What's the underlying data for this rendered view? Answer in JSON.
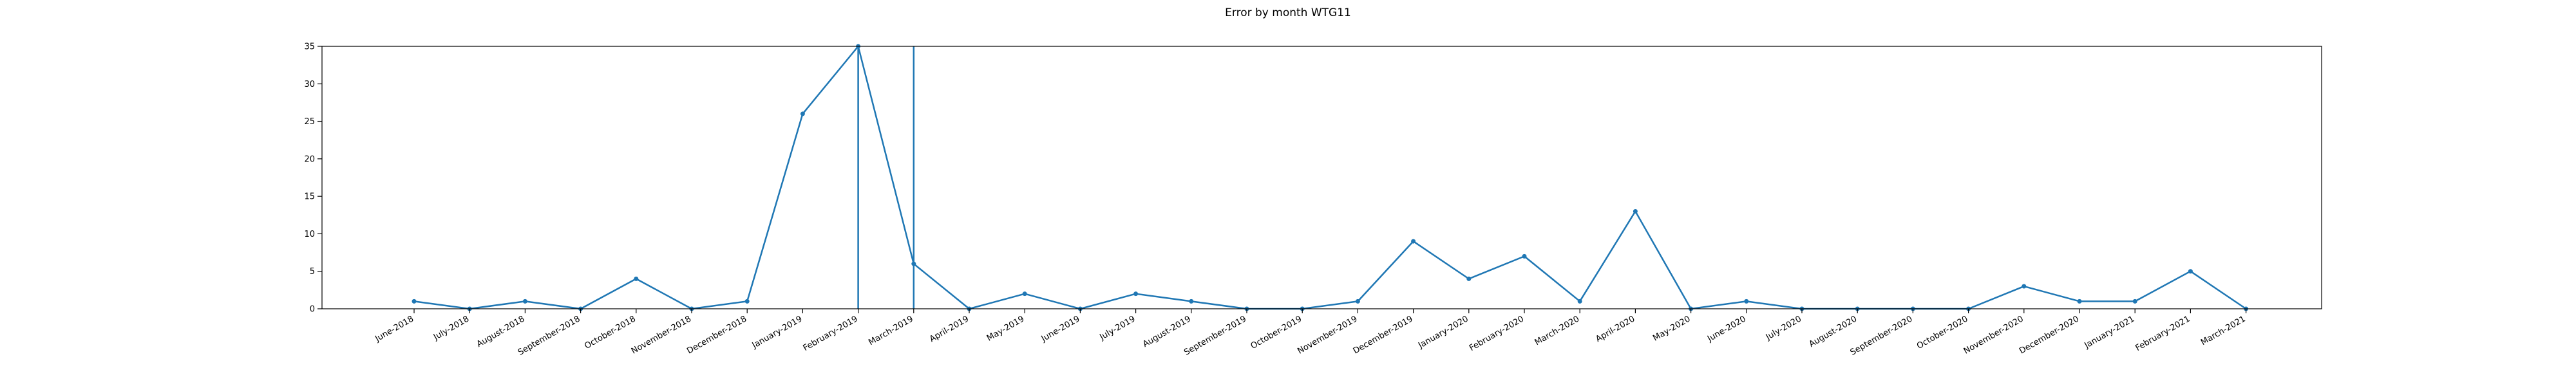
{
  "chart_data": {
    "type": "line",
    "title": "Error by month WTG11",
    "xlabel": "",
    "ylabel": "",
    "ylim": [
      0,
      35
    ],
    "yticks": [
      0,
      5,
      10,
      15,
      20,
      25,
      30,
      35
    ],
    "grid": false,
    "color": "#1f77b4",
    "categories": [
      "June-2018",
      "July-2018",
      "August-2018",
      "September-2018",
      "October-2018",
      "November-2018",
      "December-2018",
      "January-2019",
      "February-2019",
      "March-2019",
      "April-2019",
      "May-2019",
      "June-2019",
      "July-2019",
      "August-2019",
      "September-2019",
      "October-2019",
      "November-2019",
      "December-2019",
      "January-2020",
      "February-2020",
      "March-2020",
      "April-2020",
      "May-2020",
      "June-2020",
      "July-2020",
      "August-2020",
      "September-2020",
      "October-2020",
      "November-2020",
      "December-2020",
      "January-2021",
      "February-2021",
      "March-2021"
    ],
    "series": [
      {
        "values": [
          1,
          0,
          1,
          0,
          4,
          0,
          1,
          26,
          35,
          6,
          0,
          2,
          0,
          2,
          1,
          0,
          0,
          1,
          9,
          4,
          7,
          1,
          13,
          0,
          1,
          0,
          0,
          0,
          0,
          3,
          1,
          1,
          5,
          0
        ]
      }
    ],
    "vlines": [
      "February-2019",
      "March-2019"
    ]
  }
}
